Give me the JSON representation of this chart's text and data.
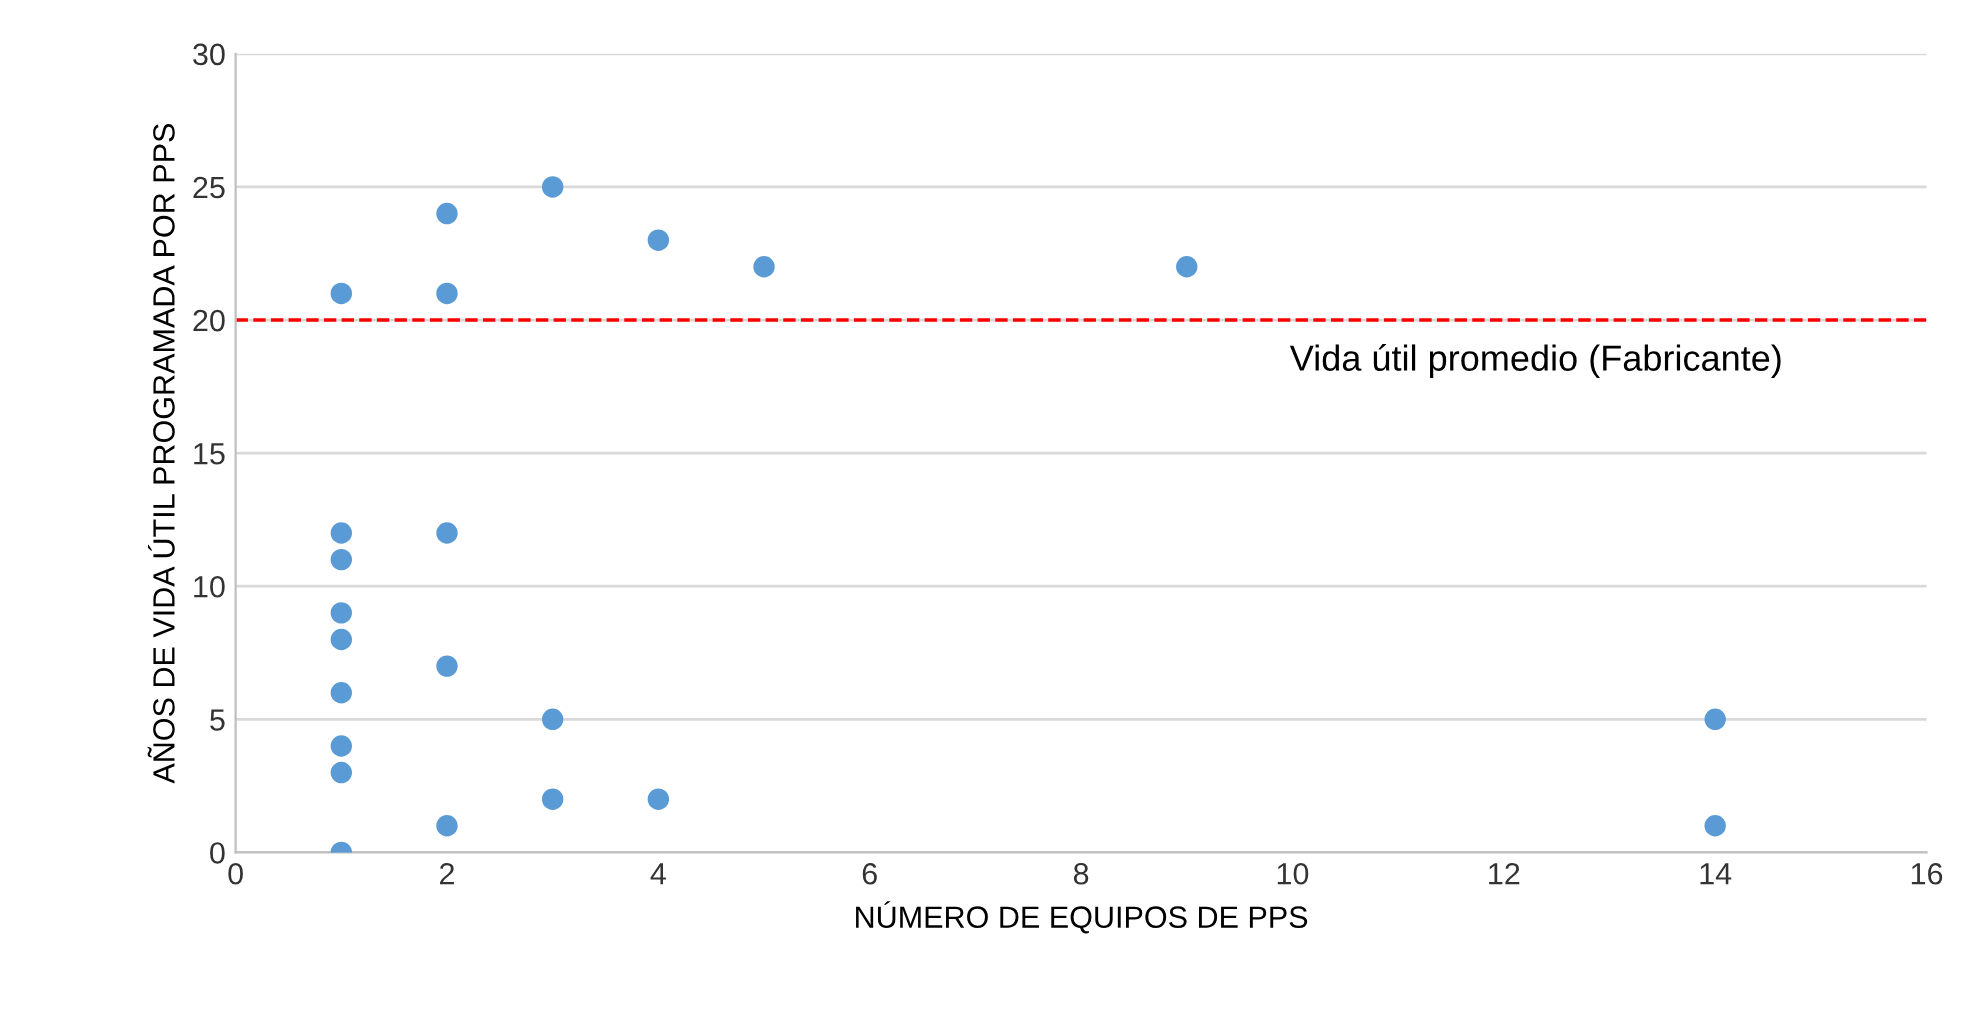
{
  "chart_data": {
    "type": "scatter",
    "xlabel": "NÚMERO DE EQUIPOS DE PPS",
    "ylabel": "AÑOS DE VIDA ÚTIL PROGRAMADA POR PPS",
    "series": [
      {
        "color": "#5b9bd5",
        "x": [
          1,
          1,
          1,
          1,
          1,
          1,
          1,
          1,
          1,
          2,
          2,
          2,
          2,
          2,
          3,
          3,
          3,
          4,
          4,
          5,
          9,
          14,
          14
        ],
        "values": [
          21,
          12,
          11,
          9,
          8,
          6,
          4,
          3,
          0,
          24,
          21,
          12,
          7,
          1,
          25,
          5,
          2,
          23,
          2,
          22,
          22,
          5,
          1
        ]
      }
    ],
    "xlim": [
      0,
      16
    ],
    "xticks": [
      0,
      2,
      4,
      6,
      8,
      10,
      12,
      14,
      16
    ],
    "ylim": [
      0,
      30
    ],
    "yticks": [
      0,
      5,
      10,
      15,
      20,
      25,
      30
    ],
    "grid": "y",
    "marker": "circle",
    "ref_lines": [
      {
        "axis": "y",
        "value": 20,
        "label": "Vida útil promedio (Fabricante)",
        "color": "#ff0000",
        "line_style": "dashed"
      }
    ]
  }
}
